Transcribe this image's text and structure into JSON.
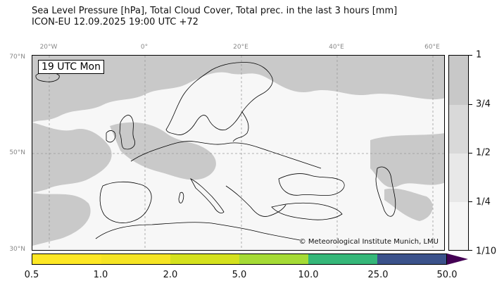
{
  "title_line1": "Sea Level Pressure [hPa], Total Cloud Cover, Total prec. in the last 3 hours [mm]",
  "title_line2": "ICON-EU 12.09.2025 19:00 UTC +72",
  "time_box": "19 UTC Mon",
  "credit": "© Meteorological Institute Munich, LMU",
  "lon_labels": [
    "20°W",
    "0°",
    "20°E",
    "40°E",
    "60°E"
  ],
  "lat_labels": [
    "70°N",
    "50°N",
    "30°N"
  ],
  "cloud_legend": {
    "labels": [
      "1",
      "3/4",
      "1/2",
      "1/4",
      "1/10"
    ],
    "colors": [
      "#c8c8c8",
      "#d9d9d9",
      "#e8e8e8",
      "#f5f5f5"
    ]
  },
  "precip_legend": {
    "labels": [
      "0.5",
      "1.0",
      "2.0",
      "5.0",
      "10.0",
      "25.0",
      "50.0"
    ],
    "colors": [
      "#fde725",
      "#f5e424",
      "#d4e11e",
      "#a5db36",
      "#35b779",
      "#3b528b"
    ]
  },
  "colors": {
    "cloud": "#c9c9c9",
    "clear": "#f7f7f7",
    "coast": "#000000",
    "grid": "#999999"
  }
}
